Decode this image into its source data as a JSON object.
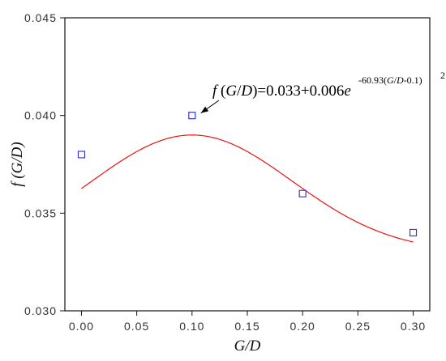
{
  "chart_data": {
    "type": "scatter",
    "title": "",
    "xlabel": "G/D",
    "ylabel": "f (G/D)",
    "xlim": [
      -0.015,
      0.315
    ],
    "ylim": [
      0.03,
      0.045
    ],
    "x_ticks": [
      "0.00",
      "0.05",
      "0.10",
      "0.15",
      "0.20",
      "0.25",
      "0.30"
    ],
    "y_ticks": [
      "0.030",
      "0.035",
      "0.040",
      "0.045"
    ],
    "grid": false,
    "series": [
      {
        "type": "scatter",
        "marker": "square-open",
        "color": "#3a3acc",
        "points": [
          {
            "x": 0.0,
            "y": 0.038
          },
          {
            "x": 0.1,
            "y": 0.04
          },
          {
            "x": 0.2,
            "y": 0.036
          },
          {
            "x": 0.3,
            "y": 0.034
          }
        ]
      },
      {
        "type": "line",
        "color": "#ee1111",
        "formula": {
          "a": 0.033,
          "b": 0.006,
          "k": -60.93,
          "x0": 0.1
        },
        "x_range": [
          0.0,
          0.3
        ]
      }
    ],
    "annotation": {
      "text_main": "f (G/D)=0.033+0.006e",
      "text_sup": "-60.93(G/D-0.1)",
      "text_sup2": "2",
      "arrow_target": {
        "x": 0.108,
        "y": 0.04
      }
    }
  }
}
